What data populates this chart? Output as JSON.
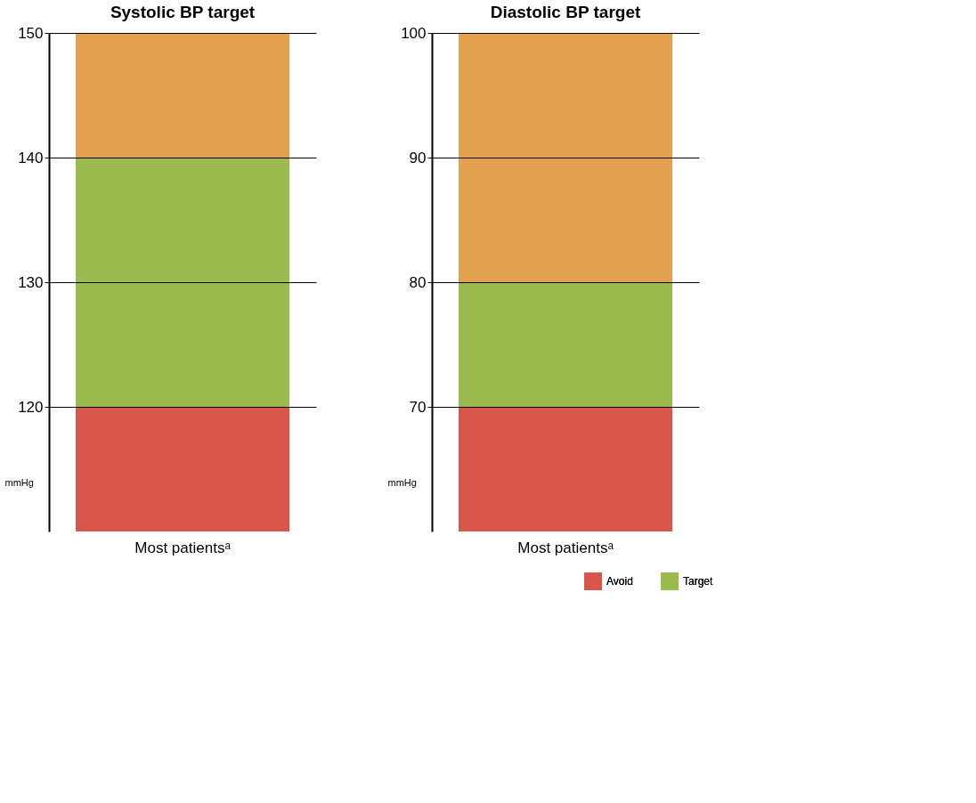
{
  "chart_data": [
    {
      "type": "bar",
      "title": "Systolic BP target",
      "ylabel": "mmHg",
      "categories": [
        "Most patientsᵃ"
      ],
      "ylim": [
        110,
        150
      ],
      "yticks": [
        120,
        130,
        140,
        150
      ],
      "grid": "y",
      "legend": false,
      "series": [
        {
          "color": "#d9564a",
          "base": [
            110
          ],
          "values": [
            10
          ]
        },
        {
          "color": "#9bbb4e",
          "base": [
            120
          ],
          "values": [
            20
          ]
        },
        {
          "color": "#e3a04f",
          "base": [
            140
          ],
          "values": [
            10
          ]
        }
      ]
    },
    {
      "type": "bar",
      "title": "Diastolic BP target",
      "ylabel": "mmHg",
      "categories": [
        "Most patientsᵃ"
      ],
      "ylim": [
        60,
        100
      ],
      "yticks": [
        70,
        80,
        90,
        100
      ],
      "grid": "y",
      "legend": "bottom right",
      "series": [
        {
          "name": "Avoid",
          "color": "#d9564a",
          "base": [
            60
          ],
          "values": [
            10
          ]
        },
        {
          "name": "Target",
          "color": "#9bbb4e",
          "base": [
            70
          ],
          "values": [
            10
          ]
        },
        {
          "color": "#e3a04f",
          "base": [
            80
          ],
          "values": [
            20
          ]
        }
      ]
    }
  ]
}
